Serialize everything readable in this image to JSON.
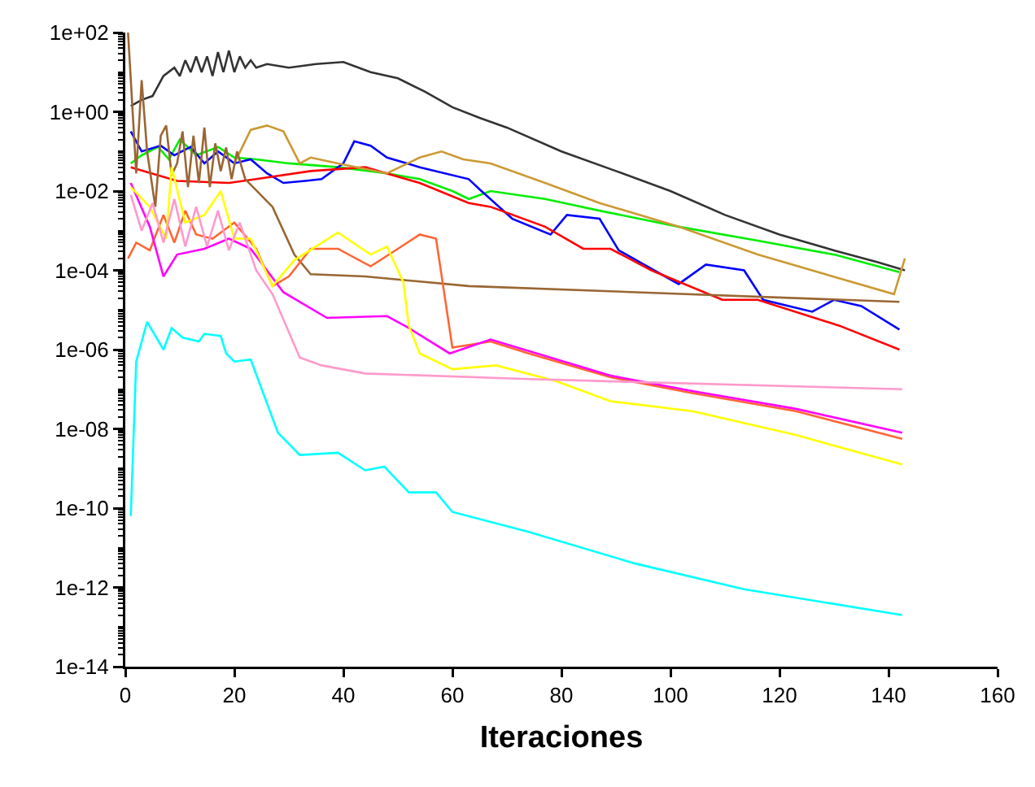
{
  "chart_data": {
    "type": "line",
    "xlabel": "Iteraciones",
    "xlim": [
      0,
      160
    ],
    "xticks": [
      0,
      20,
      40,
      60,
      80,
      100,
      120,
      140,
      160
    ],
    "ylim": [
      1e-14,
      100
    ],
    "log": true,
    "grid": false,
    "marker": "none",
    "line_style": "solid",
    "yticks": [
      {
        "value": 1e-14,
        "label": "1e-14"
      },
      {
        "value": 1e-12,
        "label": "1e-12"
      },
      {
        "value": 1e-10,
        "label": "1e-10"
      },
      {
        "value": 1e-08,
        "label": "1e-08"
      },
      {
        "value": 1e-06,
        "label": "1e-06"
      },
      {
        "value": 0.0001,
        "label": "1e-04"
      },
      {
        "value": 0.01,
        "label": "1e-02"
      },
      {
        "value": 1,
        "label": "1e+00"
      },
      {
        "value": 100,
        "label": "1e+02"
      }
    ],
    "series": [
      {
        "color": "#333333",
        "x": [
          1,
          3,
          5,
          7,
          9,
          10,
          11,
          12,
          13,
          14,
          15,
          16,
          17,
          18,
          19,
          20,
          21,
          22,
          23,
          24,
          26,
          30,
          35,
          40,
          45,
          50,
          55,
          60,
          65,
          70,
          80,
          90,
          100,
          110,
          120,
          130,
          138,
          143
        ],
        "values": [
          1.4,
          2,
          2.5,
          8,
          13,
          8,
          20,
          10,
          25,
          10,
          25,
          8,
          32,
          10,
          35,
          10,
          25,
          13,
          20,
          13,
          16,
          13,
          16,
          18,
          10,
          7,
          3.2,
          1.3,
          0.7,
          0.4,
          0.1,
          0.032,
          0.01,
          0.0025,
          0.0008,
          0.00032,
          0.00016,
          0.0001
        ]
      },
      {
        "color": "#00ee00",
        "x": [
          1,
          3,
          6,
          8,
          10,
          13,
          17,
          20,
          24,
          30,
          39,
          48,
          54,
          60,
          63,
          67,
          77,
          87,
          101.5,
          116,
          130,
          142
        ],
        "values": [
          0.05,
          0.08,
          0.13,
          0.063,
          0.2,
          0.08,
          0.13,
          0.07,
          0.063,
          0.05,
          0.04,
          0.028,
          0.02,
          0.01,
          0.0063,
          0.01,
          0.0063,
          0.0032,
          0.00126,
          0.00056,
          0.00025,
          9e-05
        ]
      },
      {
        "color": "#0000ff",
        "x": [
          1,
          3,
          6.5,
          9,
          12,
          14.5,
          17,
          20,
          23,
          26,
          29,
          33,
          36,
          40,
          42,
          45,
          48,
          54,
          63,
          65,
          71,
          78,
          81,
          87,
          90.5,
          101.5,
          106.5,
          113.5,
          117,
          126,
          130,
          135,
          142
        ],
        "values": [
          0.32,
          0.1,
          0.14,
          0.08,
          0.13,
          0.05,
          0.1,
          0.05,
          0.063,
          0.028,
          0.016,
          0.018,
          0.02,
          0.05,
          0.18,
          0.14,
          0.07,
          0.04,
          0.02,
          0.011,
          0.002,
          0.0008,
          0.0025,
          0.002,
          0.00032,
          4.5e-05,
          0.00014,
          0.0001,
          1.8e-05,
          9e-06,
          1.8e-05,
          1.26e-05,
          3.2e-06
        ]
      },
      {
        "color": "#ff0000",
        "x": [
          1,
          9.5,
          19,
          24,
          34,
          44,
          54,
          63,
          67,
          77,
          84,
          89,
          96.5,
          109.5,
          116,
          131,
          142
        ],
        "values": [
          0.04,
          0.018,
          0.016,
          0.02,
          0.032,
          0.04,
          0.016,
          0.005,
          0.004,
          0.00126,
          0.00035,
          0.00035,
          0.0001,
          1.8e-05,
          1.8e-05,
          4e-06,
          1e-06
        ]
      },
      {
        "color": "#cc9933",
        "x": [
          20,
          23,
          26,
          29,
          32,
          34,
          39,
          48,
          54,
          58,
          62,
          67,
          77,
          87,
          101.5,
          116,
          141,
          143
        ],
        "values": [
          0.05,
          0.35,
          0.45,
          0.32,
          0.05,
          0.07,
          0.05,
          0.028,
          0.07,
          0.1,
          0.063,
          0.05,
          0.016,
          0.005,
          0.00126,
          0.00025,
          2.5e-05,
          0.0002
        ]
      },
      {
        "color": "#996633",
        "x": [
          0.5,
          2,
          3,
          4,
          5.5,
          6.5,
          7.5,
          8.5,
          9.5,
          10.5,
          11.5,
          12.5,
          13.5,
          14.5,
          15.5,
          16.5,
          17.5,
          18.5,
          19.5,
          20.5,
          22,
          27,
          31,
          34,
          44,
          63,
          142
        ],
        "values": [
          100,
          0.028,
          6.3,
          0.1,
          0.004,
          0.25,
          0.45,
          0.025,
          0.05,
          0.32,
          0.0126,
          0.25,
          0.016,
          0.4,
          0.0126,
          0.16,
          0.032,
          0.126,
          0.02,
          0.1,
          0.02,
          0.004,
          0.00025,
          8e-05,
          7e-05,
          4e-05,
          1.6e-05
        ]
      },
      {
        "color": "#ff6633",
        "x": [
          0.5,
          2,
          4.5,
          7,
          9,
          11,
          13,
          16,
          20,
          24,
          27,
          30,
          34,
          39,
          45,
          50,
          54,
          57,
          60,
          67,
          74,
          89,
          104,
          123,
          142.5
        ],
        "values": [
          0.0002,
          0.0005,
          0.00032,
          0.0025,
          0.0005,
          0.0032,
          0.0008,
          0.00063,
          0.0016,
          0.00035,
          4e-05,
          7e-05,
          0.00035,
          0.00035,
          0.000126,
          0.00035,
          0.0008,
          0.00063,
          1.12e-06,
          1.6e-06,
          8e-07,
          2e-07,
          8e-08,
          2.8e-08,
          5.6e-09
        ]
      },
      {
        "color": "#ff00ff",
        "x": [
          1,
          4.5,
          7,
          9.5,
          14.5,
          19,
          23,
          29,
          37,
          48,
          52,
          59.5,
          67,
          89,
          104,
          123,
          142.5
        ],
        "values": [
          0.016,
          0.00126,
          7e-05,
          0.00025,
          0.00035,
          0.00063,
          0.00035,
          2.8e-05,
          6.3e-06,
          7e-06,
          3.5e-06,
          8e-07,
          1.8e-06,
          2.2e-07,
          9e-08,
          3.2e-08,
          8e-09
        ]
      },
      {
        "color": "#ffff00",
        "x": [
          1,
          4.5,
          7.5,
          8.5,
          11,
          14.5,
          17.5,
          20,
          23,
          27,
          31,
          39,
          45,
          48,
          51,
          52,
          54,
          60,
          68,
          79,
          89,
          104,
          123,
          142.5
        ],
        "values": [
          0.0126,
          0.004,
          0.00063,
          0.04,
          0.0016,
          0.0025,
          0.01,
          0.00063,
          0.00063,
          4e-05,
          0.00018,
          0.0009,
          0.00025,
          0.0004,
          5e-05,
          4e-06,
          8e-07,
          3.2e-07,
          4e-07,
          1.6e-07,
          5e-08,
          2.8e-08,
          7e-09,
          1.26e-09
        ]
      },
      {
        "color": "#ff99cc",
        "x": [
          1,
          3,
          5,
          7,
          9,
          11,
          13,
          15,
          17,
          19,
          21,
          24,
          27,
          32,
          36,
          44,
          74,
          142.5
        ],
        "values": [
          0.008,
          0.001,
          0.005,
          0.0005,
          0.0063,
          0.0004,
          0.004,
          0.0004,
          0.0032,
          0.00032,
          0.0016,
          0.0001,
          2.5e-05,
          6.3e-07,
          4e-07,
          2.5e-07,
          1.8e-07,
          1e-07
        ]
      },
      {
        "color": "#00ffff",
        "x": [
          1,
          2,
          4,
          7,
          8.5,
          10.5,
          13.5,
          14.5,
          17.5,
          18.5,
          20,
          23,
          28,
          32,
          39,
          44,
          47.5,
          52,
          57,
          60,
          74,
          93.5,
          113.5,
          142.5
        ],
        "values": [
          6.3e-11,
          5e-07,
          5e-06,
          1e-06,
          3.5e-06,
          2e-06,
          1.6e-06,
          2.5e-06,
          2.2e-06,
          8e-07,
          5e-07,
          5.6e-07,
          8e-09,
          2.2e-09,
          2.5e-09,
          9e-10,
          1.12e-09,
          2.5e-10,
          2.5e-10,
          8e-11,
          2.5e-11,
          4e-12,
          9e-13,
          2e-13
        ]
      }
    ]
  }
}
